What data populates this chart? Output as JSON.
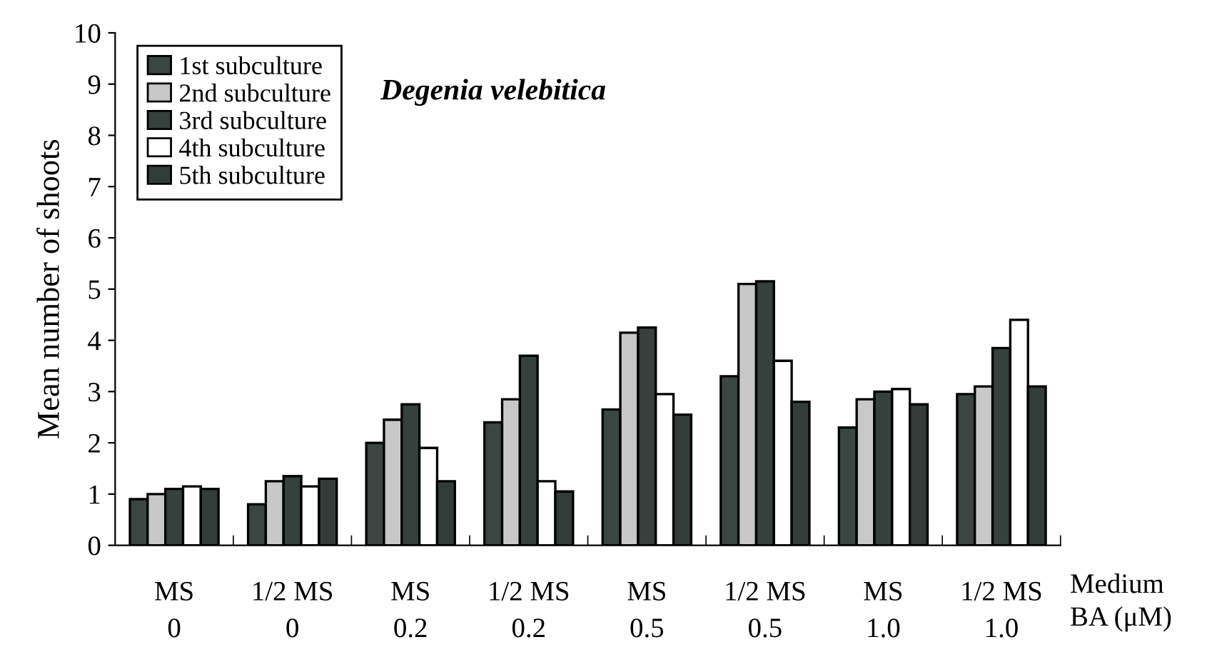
{
  "chart_data": {
    "type": "bar",
    "title": "Degenia velebitica",
    "ylabel": "Mean number of shoots",
    "xlabel": "Medium\nBA (μM)",
    "categories": [
      "MS\n0",
      "1/2 MS\n0",
      "MS\n0.2",
      "1/2 MS\n0.2",
      "MS\n0.5",
      "1/2 MS\n0.5",
      "MS\n1.0",
      "1/2 MS\n1.0"
    ],
    "series": [
      {
        "name": "1st subculture",
        "color": "#3b4541",
        "values": [
          0.9,
          0.8,
          2.0,
          2.4,
          2.65,
          3.3,
          2.3,
          2.95
        ]
      },
      {
        "name": "2nd subculture",
        "color": "#c8c8c8",
        "values": [
          1.0,
          1.25,
          2.45,
          2.85,
          4.15,
          5.1,
          2.85,
          3.1
        ]
      },
      {
        "name": "3rd subculture",
        "color": "#36403c",
        "values": [
          1.1,
          1.35,
          2.75,
          3.7,
          4.25,
          5.15,
          3.0,
          3.85
        ]
      },
      {
        "name": "4th subculture",
        "color": "#ffffff",
        "values": [
          1.15,
          1.15,
          1.9,
          1.25,
          2.95,
          3.6,
          3.05,
          4.4
        ]
      },
      {
        "name": "5th subculture",
        "color": "#333c39",
        "values": [
          1.1,
          1.3,
          1.25,
          1.05,
          2.55,
          2.8,
          2.75,
          3.1
        ]
      }
    ],
    "ylim": [
      0,
      10
    ],
    "yticks": [
      0,
      1,
      2,
      3,
      4,
      5,
      6,
      7,
      8,
      9,
      10
    ],
    "grid": false,
    "legend": "top left"
  }
}
